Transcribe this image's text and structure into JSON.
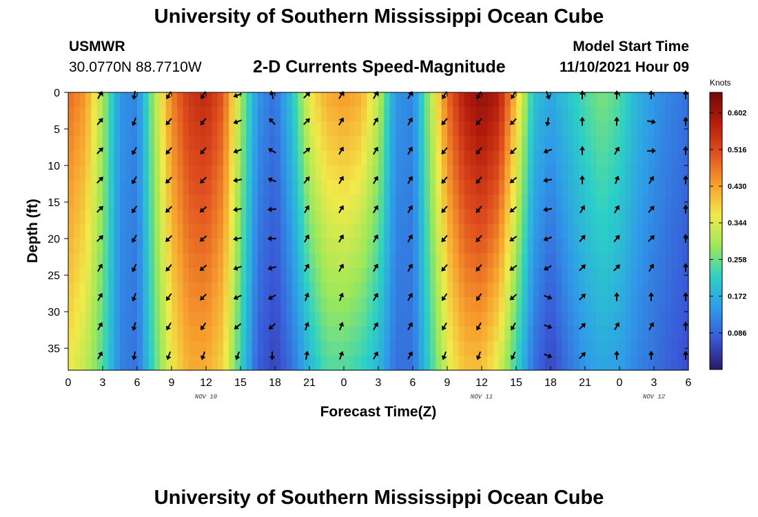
{
  "header": {
    "title": "University of Southern Mississippi Ocean Cube",
    "station": "USMWR",
    "coords": "30.0770N  88.7710W",
    "subtitle": "2-D Currents Speed-Magnitude",
    "model_label": "Model Start Time",
    "model_time": "11/10/2021 Hour 09",
    "footer_title": "University of Southern Mississippi Ocean Cube"
  },
  "colors": {
    "scale": [
      "#2b1a66",
      "#3a57d6",
      "#2f9be8",
      "#2cd0c6",
      "#9be85a",
      "#f2e94a",
      "#f7a02e",
      "#e0501f",
      "#b51d0c",
      "#6e0b0b"
    ]
  },
  "chart_data": {
    "type": "heatmap",
    "title": "2-D Currents Speed-Magnitude",
    "xlabel": "Forecast Time(Z)",
    "ylabel": "Depth (ft)",
    "x_tick_labels": [
      "0",
      "3",
      "6",
      "9",
      "12",
      "15",
      "18",
      "21",
      "0",
      "3",
      "6",
      "9",
      "12",
      "15",
      "18",
      "21",
      "0",
      "3",
      "6"
    ],
    "x_range_hours": [
      0,
      54
    ],
    "date_labels": [
      {
        "text": "NOV 10",
        "hour": 12
      },
      {
        "text": "NOV 11",
        "hour": 36
      },
      {
        "text": "NOV 12",
        "hour": 51
      }
    ],
    "y_ticks": [
      0,
      5,
      10,
      15,
      20,
      25,
      30,
      35
    ],
    "y_range": [
      0,
      38
    ],
    "colorbar": {
      "title": "Knots",
      "ticks": [
        "0.602",
        "0.516",
        "0.430",
        "0.344",
        "0.258",
        "0.172",
        "0.086"
      ],
      "tick_values": [
        0.602,
        0.516,
        0.43,
        0.344,
        0.258,
        0.172,
        0.086
      ],
      "range": [
        0,
        0.65
      ]
    },
    "hours": [
      0,
      1.5,
      3,
      4.5,
      6,
      7.5,
      9,
      10.5,
      12,
      13.5,
      15,
      16.5,
      18,
      19.5,
      21,
      22.5,
      24,
      25.5,
      27,
      28.5,
      30,
      31.5,
      33,
      34.5,
      36,
      37.5,
      39,
      40.5,
      42,
      43.5,
      45,
      46.5,
      48,
      49.5,
      51,
      52.5,
      54
    ],
    "surface_speed": [
      0.48,
      0.44,
      0.3,
      0.14,
      0.12,
      0.3,
      0.46,
      0.54,
      0.56,
      0.5,
      0.3,
      0.14,
      0.1,
      0.2,
      0.36,
      0.42,
      0.44,
      0.42,
      0.32,
      0.14,
      0.12,
      0.3,
      0.48,
      0.58,
      0.62,
      0.58,
      0.4,
      0.2,
      0.16,
      0.2,
      0.24,
      0.27,
      0.24,
      0.18,
      0.14,
      0.12,
      0.1
    ],
    "bottom_speed": [
      0.36,
      0.32,
      0.24,
      0.12,
      0.1,
      0.24,
      0.36,
      0.42,
      0.42,
      0.38,
      0.22,
      0.08,
      0.05,
      0.1,
      0.18,
      0.24,
      0.24,
      0.22,
      0.18,
      0.1,
      0.1,
      0.22,
      0.34,
      0.4,
      0.4,
      0.34,
      0.22,
      0.1,
      0.05,
      0.1,
      0.14,
      0.16,
      0.15,
      0.12,
      0.1,
      0.08,
      0.06
    ],
    "vector_hours": [
      3,
      6,
      9,
      12,
      15,
      18,
      21,
      24,
      27,
      30,
      33,
      36,
      39,
      42,
      45,
      48,
      51,
      54
    ],
    "vector_depths": [
      0,
      4,
      8,
      12,
      16,
      20,
      24,
      28,
      32,
      36
    ],
    "vector_directions_deg": [
      [
        300,
        100,
        120,
        120,
        160,
        255,
        315,
        300,
        300,
        300,
        120,
        120,
        120,
        70,
        270,
        270,
        270,
        270
      ],
      [
        310,
        110,
        130,
        130,
        160,
        225,
        315,
        300,
        300,
        300,
        130,
        130,
        135,
        100,
        270,
        270,
        10,
        270
      ],
      [
        315,
        120,
        130,
        130,
        160,
        210,
        320,
        300,
        300,
        300,
        130,
        130,
        135,
        160,
        270,
        300,
        0,
        270
      ],
      [
        315,
        120,
        135,
        135,
        170,
        200,
        310,
        300,
        300,
        300,
        130,
        130,
        140,
        170,
        270,
        290,
        300,
        270
      ],
      [
        315,
        125,
        135,
        140,
        170,
        175,
        300,
        300,
        300,
        300,
        130,
        130,
        140,
        170,
        300,
        300,
        310,
        270
      ],
      [
        315,
        120,
        135,
        140,
        170,
        180,
        300,
        300,
        300,
        300,
        130,
        130,
        145,
        160,
        310,
        310,
        315,
        270
      ],
      [
        300,
        115,
        130,
        140,
        160,
        165,
        300,
        300,
        300,
        300,
        130,
        130,
        145,
        150,
        315,
        315,
        300,
        270
      ],
      [
        300,
        110,
        125,
        135,
        155,
        150,
        290,
        290,
        300,
        300,
        125,
        125,
        140,
        20,
        315,
        270,
        270,
        270
      ],
      [
        300,
        105,
        120,
        125,
        140,
        140,
        290,
        290,
        300,
        300,
        120,
        120,
        120,
        20,
        315,
        300,
        300,
        270
      ],
      [
        300,
        100,
        110,
        110,
        110,
        90,
        280,
        290,
        300,
        300,
        110,
        110,
        115,
        20,
        315,
        270,
        270,
        270
      ]
    ]
  }
}
